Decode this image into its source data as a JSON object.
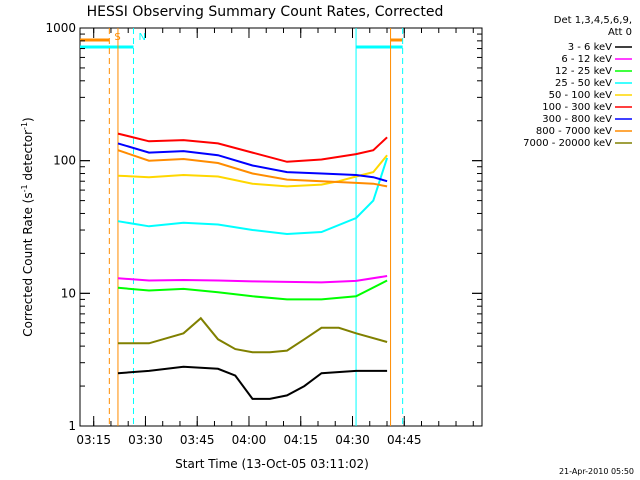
{
  "chart_data": {
    "type": "line",
    "title": "HESSI Observing Summary Count Rates, Corrected",
    "xlabel": "Start Time (13-Oct-05 03:11:02)",
    "ylabel_main": "Corrected Count Rate (s",
    "ylabel_sup1": "-1",
    "ylabel_mid": " detector",
    "ylabel_sup2": "-1",
    "ylabel_end": ")",
    "ylim": [
      1,
      1000
    ],
    "yscale": "log",
    "x_unit": "minutes since 03:11:02",
    "xlim": [
      0,
      116.5
    ],
    "x_ticks": [
      {
        "label": "03:15",
        "value": 3.97
      },
      {
        "label": "03:30",
        "value": 18.97
      },
      {
        "label": "03:45",
        "value": 33.97
      },
      {
        "label": "04:00",
        "value": 48.97
      },
      {
        "label": "04:15",
        "value": 63.97
      },
      {
        "label": "04:30",
        "value": 78.97
      },
      {
        "label": "04:45",
        "value": 93.97
      }
    ],
    "y_ticks": [
      {
        "label": "1",
        "value": 1
      },
      {
        "label": "10",
        "value": 10
      },
      {
        "label": "100",
        "value": 100
      },
      {
        "label": "1000",
        "value": 1000
      }
    ],
    "legend_title_1": "Det 1,3,4,5,6,9,",
    "legend_title_2": "Att 0",
    "legend_position": "right",
    "series": [
      {
        "name": "3 - 6 keV",
        "color": "#000000",
        "x": [
          11,
          20,
          30,
          40,
          45,
          50,
          55,
          60,
          65,
          70,
          80,
          89
        ],
        "y": [
          2.5,
          2.6,
          2.8,
          2.7,
          2.4,
          1.6,
          1.6,
          1.7,
          2.0,
          2.5,
          2.6,
          2.6
        ]
      },
      {
        "name": "6 - 12 keV",
        "color": "#ff00ff",
        "x": [
          11,
          20,
          30,
          40,
          50,
          60,
          70,
          80,
          89
        ],
        "y": [
          13,
          12.5,
          12.6,
          12.5,
          12.3,
          12.2,
          12.1,
          12.4,
          13.5
        ]
      },
      {
        "name": "12 - 25 keV",
        "color": "#00ff00",
        "x": [
          11,
          20,
          30,
          40,
          50,
          60,
          70,
          80,
          89
        ],
        "y": [
          11,
          10.5,
          10.8,
          10.2,
          9.5,
          9.0,
          9.0,
          9.5,
          12.5
        ]
      },
      {
        "name": "25 - 50 keV",
        "color": "#00ffff",
        "x": [
          11,
          20,
          30,
          40,
          50,
          60,
          70,
          80,
          85,
          89
        ],
        "y": [
          35,
          32,
          34,
          33,
          30,
          28,
          29,
          37,
          50,
          105
        ]
      },
      {
        "name": "50 - 100 keV",
        "color": "#ffd700",
        "x": [
          11,
          20,
          30,
          40,
          50,
          60,
          70,
          75,
          80,
          85,
          89
        ],
        "y": [
          77,
          75,
          78,
          76,
          67,
          64,
          66,
          70,
          76,
          82,
          110
        ]
      },
      {
        "name": "100 - 300 keV",
        "color": "#ff0000",
        "x": [
          11,
          20,
          30,
          40,
          50,
          60,
          70,
          80,
          85,
          89
        ],
        "y": [
          160,
          140,
          143,
          135,
          115,
          98,
          102,
          112,
          120,
          150
        ]
      },
      {
        "name": "300 - 800 keV",
        "color": "#0000ff",
        "x": [
          11,
          20,
          30,
          40,
          50,
          60,
          70,
          80,
          85,
          89
        ],
        "y": [
          135,
          115,
          118,
          110,
          92,
          82,
          80,
          78,
          75,
          70
        ]
      },
      {
        "name": "800 - 7000 keV",
        "color": "#ff8c00",
        "x": [
          11,
          20,
          30,
          40,
          50,
          60,
          70,
          80,
          85,
          89
        ],
        "y": [
          120,
          100,
          103,
          96,
          80,
          72,
          70,
          68,
          67,
          64
        ]
      },
      {
        "name": "7000 - 20000 keV",
        "color": "#808000",
        "x": [
          11,
          20,
          30,
          35,
          40,
          45,
          50,
          55,
          60,
          65,
          70,
          75,
          80,
          89
        ],
        "y": [
          4.2,
          4.2,
          5.0,
          6.5,
          4.5,
          3.8,
          3.6,
          3.6,
          3.7,
          4.5,
          5.5,
          5.5,
          5.0,
          4.3
        ]
      }
    ],
    "markers": [
      {
        "label": "S",
        "color": "#ff8c00",
        "x": 8.5
      },
      {
        "label": "N",
        "color": "#00ffff",
        "x": 15.5
      }
    ],
    "vertical_lines": [
      {
        "x": 8.5,
        "color": "#ff8c00",
        "style": "dashed"
      },
      {
        "x": 11.0,
        "color": "#ff8c00",
        "style": "solid"
      },
      {
        "x": 15.5,
        "color": "#00ffff",
        "style": "dashed"
      },
      {
        "x": 80.0,
        "color": "#00ffff",
        "style": "solid"
      },
      {
        "x": 90.0,
        "color": "#ff8c00",
        "style": "solid"
      },
      {
        "x": 93.5,
        "color": "#00ffff",
        "style": "dashed"
      }
    ],
    "top_bars": [
      {
        "color": "#ff8c00",
        "ranges": [
          [
            0,
            8.5
          ],
          [
            90,
            93.5
          ]
        ]
      },
      {
        "color": "#00ffff",
        "ranges": [
          [
            0,
            15.5
          ],
          [
            80,
            93.5
          ]
        ]
      }
    ],
    "grid": false
  },
  "footer": {
    "timestamp": "21-Apr-2010 05:50"
  }
}
